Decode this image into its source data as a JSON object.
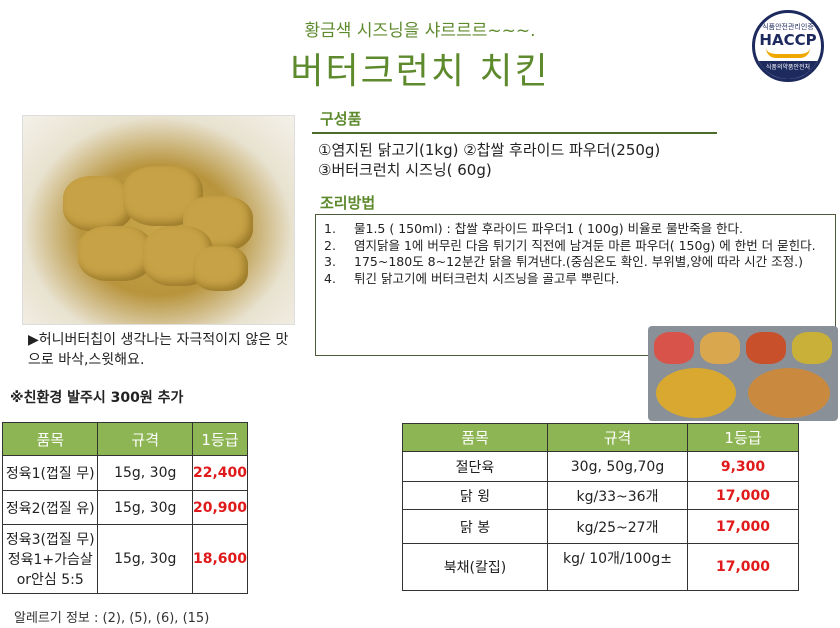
{
  "header": {
    "subtitle": "황금색 시즈닝을 샤르르르~~~.",
    "title": "버터크런치 치킨"
  },
  "logo": {
    "top": "식품안전관리인증",
    "main": "HACCP",
    "bottom": "식품의약품안전처"
  },
  "caption": "▶허니버터칩이 생각나는 자극적이지 않은 맛으로 바삭,스윗해요.",
  "components": {
    "heading": "구성품",
    "line1": "①염지된 닭고기(1kg) ②찹쌀 후라이드 파우더(250g)",
    "line2": "③버터크런치 시즈닝( 60g)"
  },
  "method": {
    "heading": "조리방법",
    "steps": [
      {
        "n": "1.",
        "text": "물1.5 ( 150ml) : 찹쌀 후라이드 파우더1 ( 100g)  비율로 물반죽을  한다."
      },
      {
        "n": "2.",
        "text": "염지닭을 1에 버무린  다음  튀기기  직전에  남겨둔  마른 파우더( 150g) 에  한번 더 묻힌다."
      },
      {
        "n": "3.",
        "text": "175~180도 8~12분간 닭을 튀겨낸다.(중심온도 확인. 부위별,양에  따라 시간 조정.)"
      },
      {
        "n": "4.",
        "text": "튀긴 닭고기에 버터크런치 시즈닝을 골고루 뿌린다."
      }
    ]
  },
  "note": "※친환경 발주시 300원 추가",
  "table1": {
    "headers": [
      "품목",
      "규격",
      "1등급"
    ],
    "rows": [
      [
        "정육1(껍질 무)",
        "15g, 30g",
        "22,400"
      ],
      [
        "정육2(껍질 유)",
        "15g, 30g",
        "20,900"
      ],
      [
        "정육3(껍질 무)정육1+가슴살or안심 5:5",
        "15g, 30g",
        "18,600"
      ]
    ]
  },
  "table2": {
    "headers": [
      "품목",
      "규격",
      "1등급"
    ],
    "rows": [
      [
        "절단육",
        "30g, 50g,70g",
        "9,300"
      ],
      [
        "닭 윙",
        "kg/33~36개",
        "17,000"
      ],
      [
        "닭 봉",
        "kg/25~27개",
        "17,000"
      ],
      [
        "북채(칼집)",
        "kg/ 10개/100g±",
        "17,000"
      ]
    ]
  },
  "allergy": "알레르기 정보 : (2), (5), (6), (15)",
  "colors": {
    "green": "#5e8a2e",
    "header_bg": "#8db553",
    "price": "#e01a1a"
  }
}
